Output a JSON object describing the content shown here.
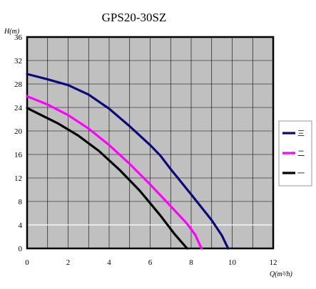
{
  "chart_data": {
    "type": "line",
    "title": "GPS20-30SZ",
    "xlabel": "Q(m³/h)",
    "ylabel": "H(m)",
    "xlim": [
      0,
      12
    ],
    "ylim": [
      0,
      36
    ],
    "x_ticks": [
      0,
      2,
      4,
      6,
      8,
      10,
      12
    ],
    "y_ticks": [
      0,
      4,
      8,
      12,
      16,
      20,
      24,
      28,
      32,
      36
    ],
    "grid": true,
    "legend": "right",
    "background_color": "#c0c0c0",
    "series": [
      {
        "name": "三",
        "color": "#0a0a78",
        "x": [
          0,
          1,
          2,
          3,
          4,
          5,
          6,
          6.5,
          7,
          8,
          9,
          9.5,
          9.8
        ],
        "y": [
          29.7,
          28.8,
          27.8,
          26.2,
          23.8,
          20.8,
          17.6,
          15.8,
          13.5,
          9.2,
          4.8,
          2.2,
          0
        ]
      },
      {
        "name": "二",
        "color": "#ff00ff",
        "x": [
          0,
          1,
          2,
          3,
          4,
          5,
          6,
          7,
          7.8,
          8.2,
          8.5
        ],
        "y": [
          25.9,
          24.5,
          22.7,
          20.4,
          17.6,
          14.4,
          10.9,
          7.2,
          4.2,
          2.3,
          0
        ]
      },
      {
        "name": "一",
        "color": "#000000",
        "x": [
          0,
          1.5,
          2.5,
          3.5,
          4.5,
          5.5,
          6.5,
          7.2,
          7.8
        ],
        "y": [
          23.9,
          21.3,
          19.2,
          16.6,
          13.4,
          9.8,
          5.6,
          2.4,
          0
        ]
      }
    ]
  }
}
